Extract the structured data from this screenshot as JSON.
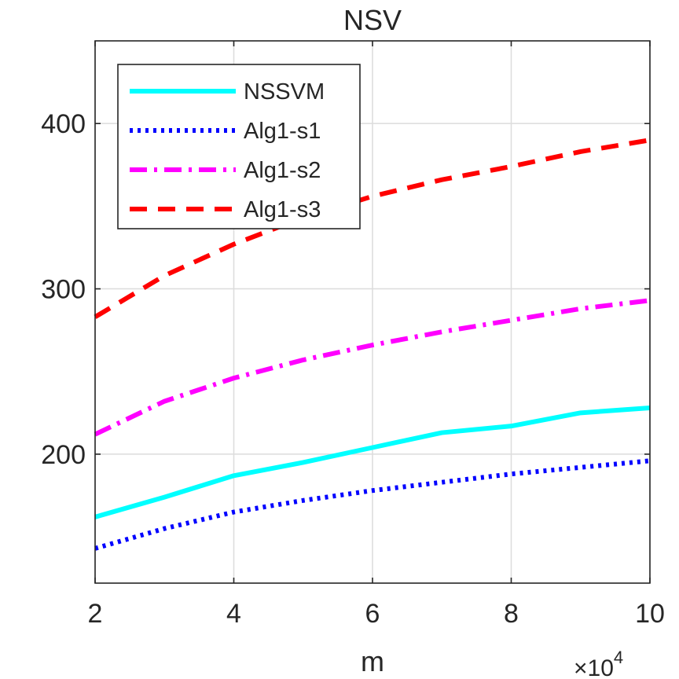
{
  "chart_data": {
    "type": "line",
    "title": "NSV",
    "xlabel": "m",
    "ylabel": "",
    "x_multiplier_label": "×10",
    "x_multiplier_exponent": "4",
    "x": [
      2,
      3,
      4,
      5,
      6,
      7,
      8,
      9,
      10
    ],
    "xlim": [
      2,
      10
    ],
    "ylim": [
      122,
      450
    ],
    "xticks": [
      2,
      4,
      6,
      8,
      10
    ],
    "yticks": [
      200,
      300,
      400
    ],
    "grid": true,
    "legend_position": "top-left",
    "series": [
      {
        "name": "NSSVM",
        "color": "#00ffff",
        "style": "solid",
        "values": [
          162,
          174,
          187,
          195,
          204,
          213,
          217,
          225,
          228
        ]
      },
      {
        "name": "Alg1-s1",
        "color": "#0000ff",
        "style": "dotted",
        "values": [
          143,
          155,
          165,
          172,
          178,
          183,
          188,
          192,
          196
        ]
      },
      {
        "name": "Alg1-s2",
        "color": "#ff00ff",
        "style": "dashdot",
        "values": [
          212,
          232,
          246,
          257,
          266,
          274,
          281,
          288,
          293
        ]
      },
      {
        "name": "Alg1-s3",
        "color": "#ff0000",
        "style": "dashed",
        "values": [
          283,
          308,
          327,
          343,
          356,
          366,
          374,
          383,
          390
        ]
      }
    ]
  }
}
